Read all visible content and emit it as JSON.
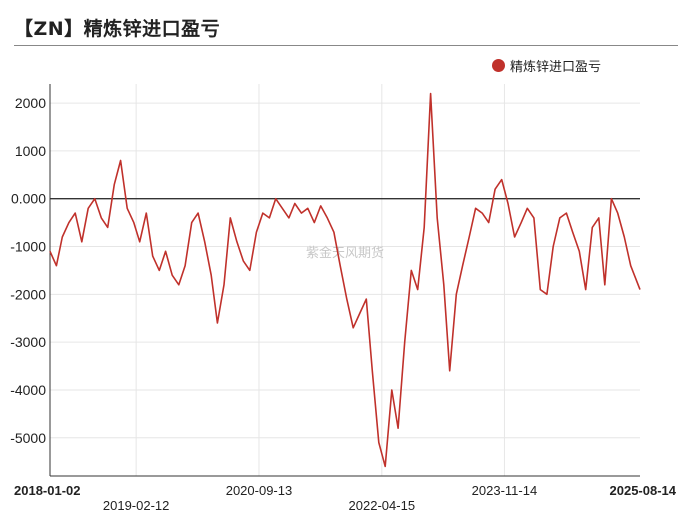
{
  "header": {
    "title": "【ZN】精炼锌进口盈亏"
  },
  "watermark": "紫金天风期货",
  "chart_data": {
    "type": "line",
    "title": "【ZN】精炼锌进口盈亏",
    "xlabel": "",
    "ylabel": "",
    "ylim": [
      -5800,
      2400
    ],
    "yticks": [
      2000,
      1000,
      0,
      -1000,
      -2000,
      -3000,
      -4000,
      -5000
    ],
    "ytick_labels": [
      "2000",
      "1000",
      "0.000",
      "-1000",
      "-2000",
      "-3000",
      "-4000",
      "-5000"
    ],
    "xlim": [
      "2018-01-02",
      "2025-08-14"
    ],
    "xticks": [
      "2018-01-02",
      "2019-02-12",
      "2020-09-13",
      "2022-04-15",
      "2023-11-14",
      "2025-08-14"
    ],
    "legend": {
      "position": "top-right"
    },
    "grid": true,
    "series": [
      {
        "name": "精炼锌进口盈亏",
        "color": "#c0312b",
        "x": [
          "2018-01-02",
          "2018-02-01",
          "2018-03-01",
          "2018-04-01",
          "2018-05-01",
          "2018-06-01",
          "2018-07-01",
          "2018-08-01",
          "2018-09-01",
          "2018-10-01",
          "2018-11-01",
          "2018-12-01",
          "2019-01-01",
          "2019-02-01",
          "2019-03-01",
          "2019-04-01",
          "2019-05-01",
          "2019-06-01",
          "2019-07-01",
          "2019-08-01",
          "2019-09-01",
          "2019-10-01",
          "2019-11-01",
          "2019-12-01",
          "2020-01-01",
          "2020-02-01",
          "2020-03-01",
          "2020-04-01",
          "2020-05-01",
          "2020-06-01",
          "2020-07-01",
          "2020-08-01",
          "2020-09-01",
          "2020-10-01",
          "2020-11-01",
          "2020-12-01",
          "2021-01-01",
          "2021-02-01",
          "2021-03-01",
          "2021-04-01",
          "2021-05-01",
          "2021-06-01",
          "2021-07-01",
          "2021-08-01",
          "2021-09-01",
          "2021-10-01",
          "2021-11-01",
          "2021-12-01",
          "2022-01-01",
          "2022-02-01",
          "2022-03-01",
          "2022-04-01",
          "2022-05-01",
          "2022-06-01",
          "2022-07-01",
          "2022-08-01",
          "2022-09-01",
          "2022-10-01",
          "2022-11-01",
          "2022-12-01",
          "2023-01-01",
          "2023-02-01",
          "2023-03-01",
          "2023-04-01",
          "2023-05-01",
          "2023-06-01",
          "2023-07-01",
          "2023-08-01",
          "2023-09-01",
          "2023-10-01",
          "2023-11-01",
          "2023-12-01",
          "2024-01-01",
          "2024-02-01",
          "2024-03-01",
          "2024-04-01",
          "2024-05-01",
          "2024-06-01",
          "2024-07-01",
          "2024-08-01",
          "2024-09-01",
          "2024-10-01",
          "2024-11-01",
          "2024-12-01",
          "2025-01-01",
          "2025-02-01",
          "2025-03-01",
          "2025-04-01",
          "2025-05-01",
          "2025-06-01",
          "2025-07-01",
          "2025-08-14"
        ],
        "values": [
          -1100,
          -1400,
          -800,
          -500,
          -300,
          -900,
          -200,
          0,
          -400,
          -600,
          300,
          800,
          -200,
          -500,
          -900,
          -300,
          -1200,
          -1500,
          -1100,
          -1600,
          -1800,
          -1400,
          -500,
          -300,
          -900,
          -1600,
          -2600,
          -1800,
          -400,
          -900,
          -1300,
          -1500,
          -700,
          -300,
          -400,
          0,
          -200,
          -400,
          -100,
          -300,
          -200,
          -500,
          -150,
          -400,
          -700,
          -1400,
          -2100,
          -2700,
          -2400,
          -2100,
          -3600,
          -5100,
          -5600,
          -4000,
          -4800,
          -3000,
          -1500,
          -1900,
          -600,
          2200,
          -400,
          -1800,
          -3600,
          -2000,
          -1400,
          -800,
          -200,
          -300,
          -500,
          200,
          400,
          -100,
          -800,
          -500,
          -200,
          -400,
          -1900,
          -2000,
          -1000,
          -400,
          -300,
          -700,
          -1100,
          -1900,
          -600,
          -400,
          -1800,
          0,
          -300,
          -800,
          -1400,
          -1900
        ]
      }
    ]
  }
}
